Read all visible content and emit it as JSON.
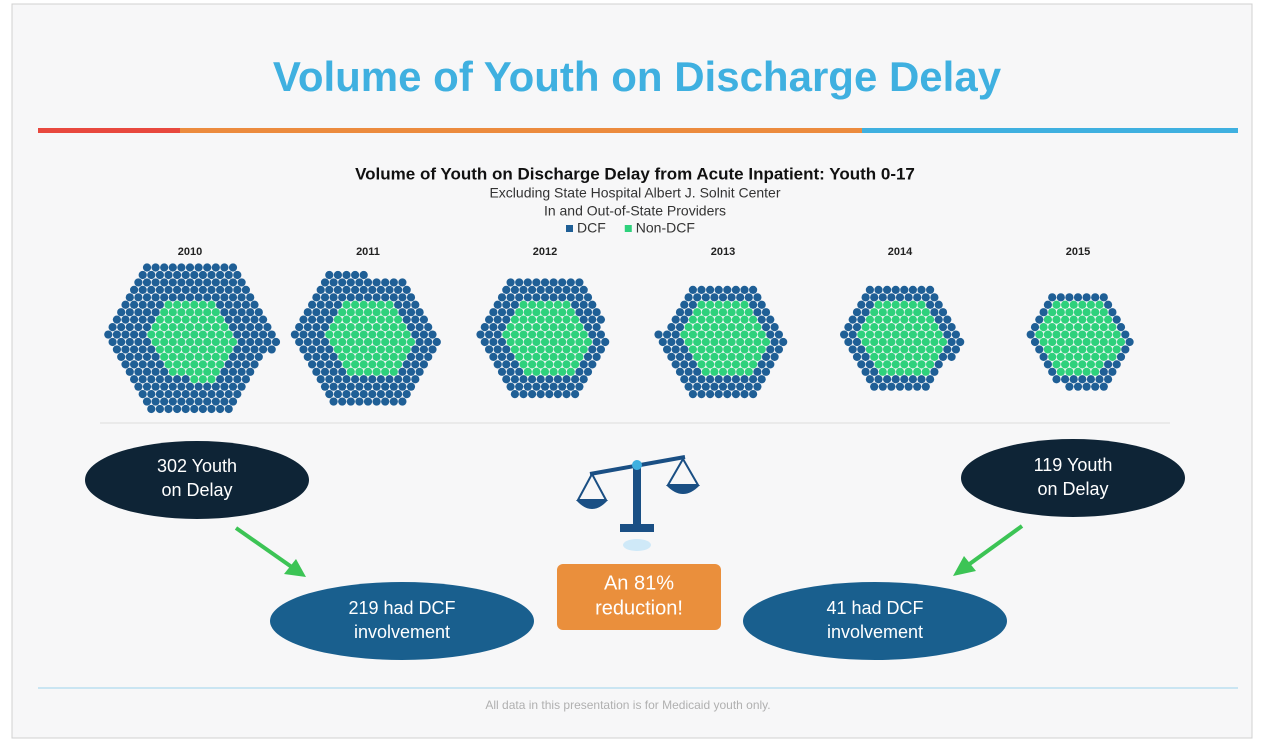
{
  "slide_title": "Volume of Youth on Discharge Delay",
  "chart_data": {
    "type": "hex-unit",
    "title": "Volume of Youth on Discharge Delay from Acute Inpatient: Youth 0-17",
    "subtitle": [
      "Excluding State Hospital Albert J. Solnit Center",
      "In and Out-of-State Providers"
    ],
    "categories": [
      "2010",
      "2011",
      "2012",
      "2013",
      "2014",
      "2015"
    ],
    "series": [
      {
        "name": "DCF",
        "color": "#1f5f96",
        "values": [
          219,
          150,
          110,
          90,
          70,
          41
        ]
      },
      {
        "name": "Non-DCF",
        "color": "#2ed17c",
        "values": [
          83,
          80,
          80,
          80,
          80,
          78
        ]
      }
    ]
  },
  "callouts": {
    "left_total": [
      "302 Youth",
      "on Delay"
    ],
    "left_dcf": [
      "219 had DCF",
      "involvement"
    ],
    "right_total": [
      "119 Youth",
      "on Delay"
    ],
    "right_dcf": [
      "41 had DCF",
      "involvement"
    ],
    "reduction": [
      "An 81%",
      "reduction!"
    ]
  },
  "footer": "All data in this presentation is for Medicaid youth only."
}
